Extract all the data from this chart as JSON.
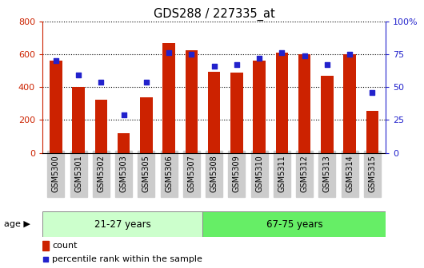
{
  "title": "GDS288 / 227335_at",
  "samples": [
    "GSM5300",
    "GSM5301",
    "GSM5302",
    "GSM5303",
    "GSM5305",
    "GSM5306",
    "GSM5307",
    "GSM5308",
    "GSM5309",
    "GSM5310",
    "GSM5311",
    "GSM5312",
    "GSM5313",
    "GSM5314",
    "GSM5315"
  ],
  "counts": [
    560,
    400,
    325,
    120,
    340,
    670,
    625,
    495,
    490,
    560,
    610,
    600,
    470,
    600,
    255
  ],
  "percentiles": [
    70,
    59,
    54,
    29,
    54,
    76,
    75,
    66,
    67,
    72,
    76,
    74,
    67,
    75,
    46
  ],
  "ylim_left": [
    0,
    800
  ],
  "ylim_right": [
    0,
    100
  ],
  "yticks_left": [
    0,
    200,
    400,
    600,
    800
  ],
  "yticks_right": [
    0,
    25,
    50,
    75,
    100
  ],
  "yticklabels_right": [
    "0",
    "25",
    "50",
    "75",
    "100%"
  ],
  "group1_label": "21-27 years",
  "group2_label": "67-75 years",
  "group1_count": 7,
  "group2_count": 8,
  "bar_color": "#CC2200",
  "dot_color": "#2222CC",
  "group1_bg": "#CCFFCC",
  "group2_bg": "#66EE66",
  "legend_count_label": "count",
  "legend_pct_label": "percentile rank within the sample",
  "age_label": "age",
  "tick_bg": "#CCCCCC",
  "white": "#FFFFFF"
}
